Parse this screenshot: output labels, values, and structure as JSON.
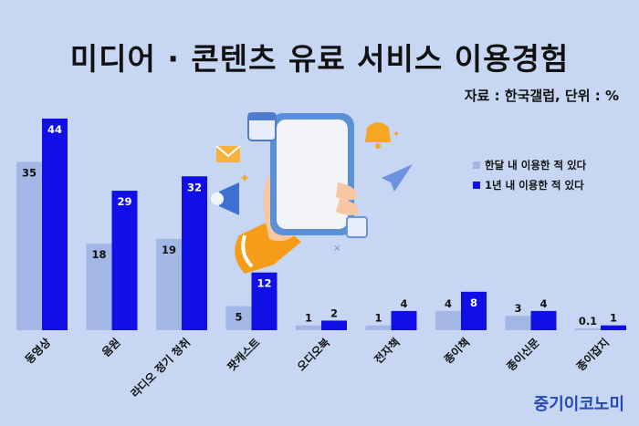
{
  "header": {
    "title": "미디어 · 콘텐츠 유료 서비스 이용경험",
    "source": "자료 : 한국갤럽, 단위 : %"
  },
  "brand": "중기이코노미",
  "colors": {
    "monthly": "#a3b7e6",
    "yearly": "#1010e6",
    "background": "#c6d6f3"
  },
  "chart_data": {
    "type": "bar",
    "categories": [
      "동영상",
      "음원",
      "라디오 정기 청취",
      "팟캐스트",
      "오디오북",
      "전자책",
      "종이책",
      "종이신문",
      "종이잡지"
    ],
    "series": [
      {
        "name": "한달 내 이용한 적 있다",
        "values": [
          35,
          18,
          19,
          5,
          1,
          1,
          4,
          3,
          0.1
        ]
      },
      {
        "name": "1년 내 이용한 적 있다",
        "values": [
          44,
          29,
          32,
          12,
          2,
          4,
          8,
          4,
          1
        ]
      }
    ],
    "ylim": [
      0,
      44
    ],
    "legend": "right",
    "grid": false
  }
}
